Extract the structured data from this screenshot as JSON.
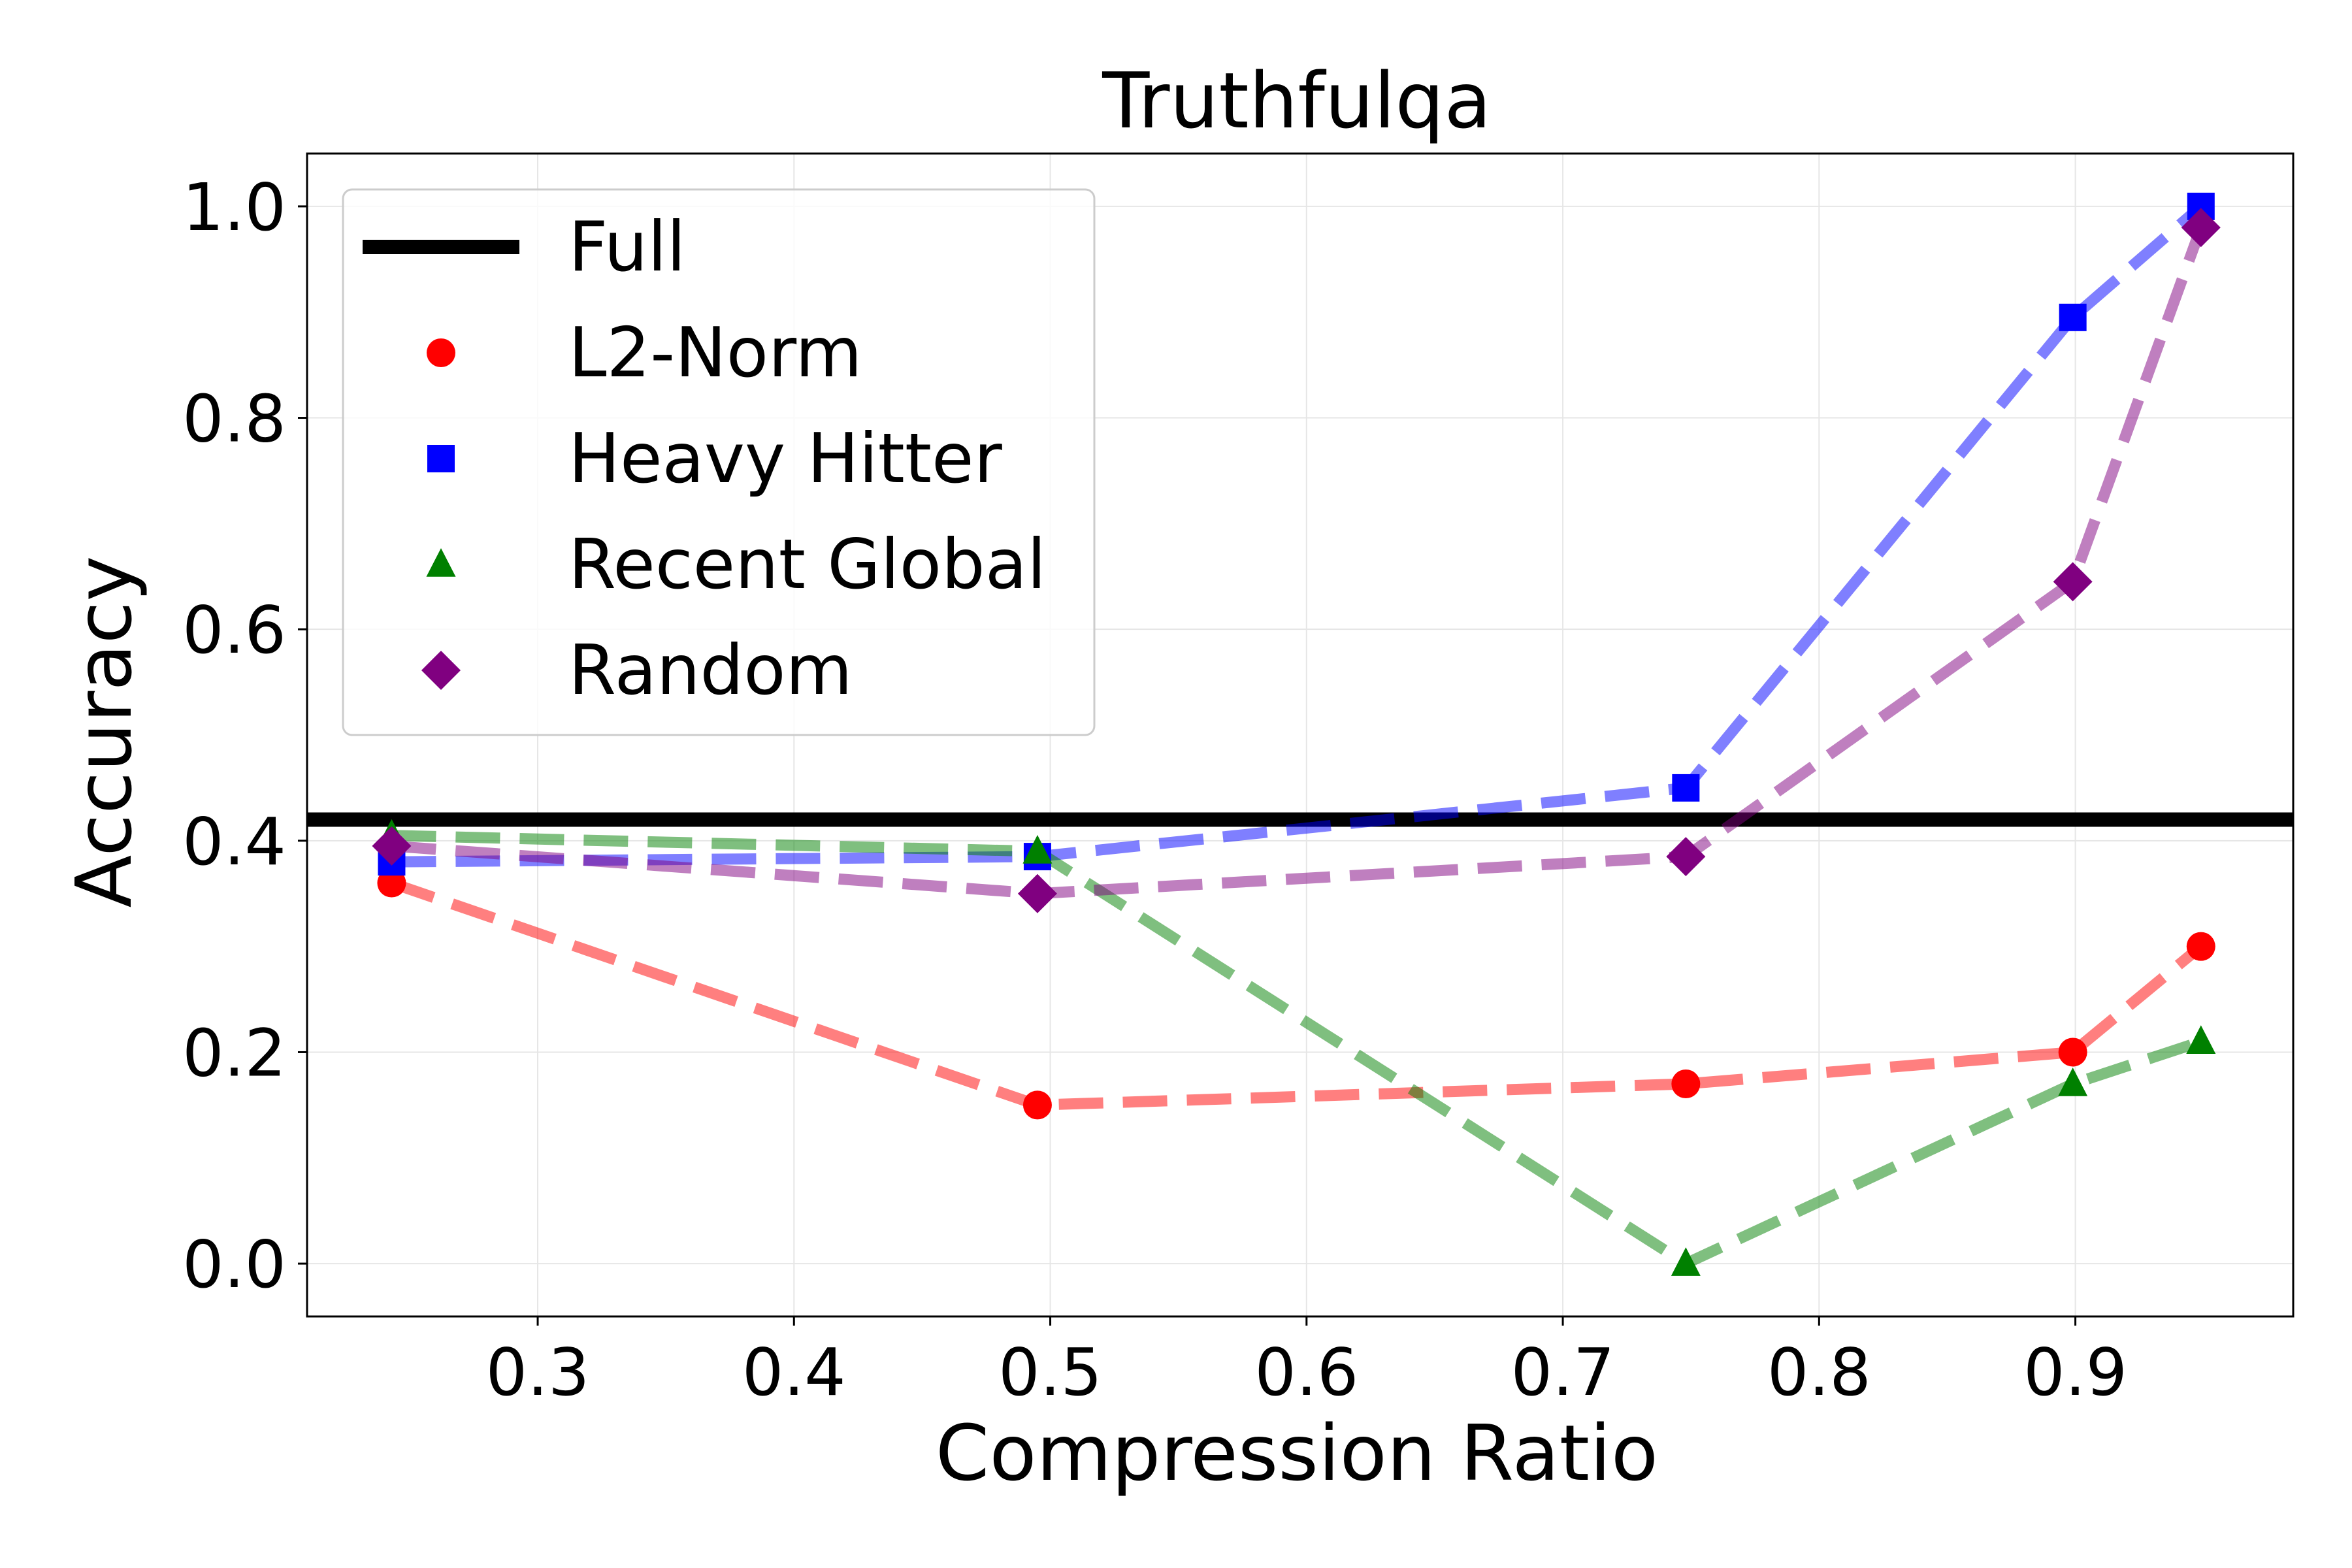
{
  "chart_data": {
    "type": "line",
    "title": "Truthfulqa",
    "xlabel": "Compression Ratio",
    "ylabel": "Accuracy",
    "xlim": [
      0.21,
      0.985
    ],
    "ylim": [
      -0.05,
      1.05
    ],
    "xticks": [
      0.3,
      0.4,
      0.5,
      0.6,
      0.7,
      0.8,
      0.9
    ],
    "xtick_labels": [
      "0.3",
      "0.4",
      "0.5",
      "0.6",
      "0.7",
      "0.8",
      "0.9"
    ],
    "yticks": [
      0.0,
      0.2,
      0.4,
      0.6,
      0.8,
      1.0
    ],
    "ytick_labels": [
      "0.0",
      "0.2",
      "0.4",
      "0.6",
      "0.8",
      "1.0"
    ],
    "grid": true,
    "legend_position": "top-left",
    "reference_line": {
      "name": "Full",
      "y": 0.42,
      "color": "#000000"
    },
    "series": [
      {
        "name": "L2-Norm",
        "marker": "circle",
        "color": "#ff0000",
        "x": [
          0.243,
          0.495,
          0.748,
          0.899,
          0.949
        ],
        "y": [
          0.36,
          0.15,
          0.17,
          0.2,
          0.3
        ]
      },
      {
        "name": "Heavy Hitter",
        "marker": "square",
        "color": "#0000ff",
        "x": [
          0.243,
          0.495,
          0.748,
          0.899,
          0.949
        ],
        "y": [
          0.38,
          0.385,
          0.45,
          0.895,
          1.0
        ]
      },
      {
        "name": "Recent Global",
        "marker": "triangle",
        "color": "#008000",
        "x": [
          0.243,
          0.495,
          0.748,
          0.899,
          0.949
        ],
        "y": [
          0.405,
          0.39,
          0.0,
          0.17,
          0.21
        ]
      },
      {
        "name": "Random",
        "marker": "diamond",
        "color": "#800080",
        "x": [
          0.243,
          0.495,
          0.748,
          0.899,
          0.949
        ],
        "y": [
          0.395,
          0.35,
          0.385,
          0.645,
          0.98
        ]
      }
    ]
  }
}
